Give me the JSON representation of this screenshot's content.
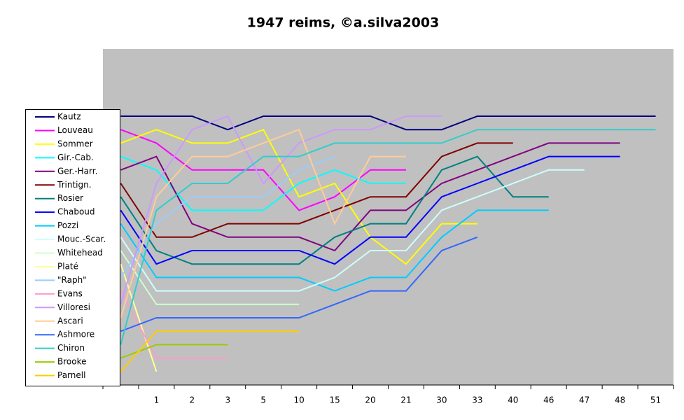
{
  "chart_data": {
    "type": "line",
    "title": "1947 reims,  ©a.silva2003",
    "categories": [
      null,
      "1",
      "2",
      "3",
      "5",
      "10",
      "15",
      "20",
      "21",
      "30",
      "33",
      "40",
      "46",
      "47",
      "48",
      "51"
    ],
    "ylim": [
      21,
      -4
    ],
    "series": [
      {
        "name": "Kautz",
        "color": "#000080",
        "values": [
          1,
          1,
          1,
          2,
          1,
          1,
          1,
          1,
          2,
          2,
          1,
          1,
          1,
          1,
          1,
          1
        ]
      },
      {
        "name": "Louveau",
        "color": "#ff00ff",
        "values": [
          2,
          3,
          5,
          5,
          5,
          8,
          7,
          5,
          5,
          null,
          null,
          null,
          null,
          null,
          null,
          null
        ]
      },
      {
        "name": "Sommer",
        "color": "#ffff00",
        "values": [
          3,
          2,
          3,
          3,
          2,
          7,
          6,
          10,
          12,
          9,
          9,
          null,
          null,
          null,
          null,
          null
        ]
      },
      {
        "name": "Gir.-Cab.",
        "color": "#00ffff",
        "values": [
          4,
          5,
          8,
          8,
          8,
          6,
          5,
          6,
          6,
          null,
          null,
          null,
          null,
          null,
          null,
          null
        ]
      },
      {
        "name": "Ger.-Harr.",
        "color": "#800080",
        "values": [
          5,
          4,
          9,
          10,
          10,
          10,
          11,
          8,
          8,
          6,
          5,
          4,
          3,
          3,
          3,
          null
        ]
      },
      {
        "name": "Trintign.",
        "color": "#800000",
        "values": [
          6,
          10,
          10,
          9,
          9,
          9,
          8,
          7,
          7,
          4,
          3,
          3,
          null,
          null,
          null,
          null
        ]
      },
      {
        "name": "Rosier",
        "color": "#008080",
        "values": [
          7,
          11,
          12,
          12,
          12,
          12,
          10,
          9,
          9,
          5,
          4,
          7,
          7,
          null,
          null,
          null
        ]
      },
      {
        "name": "Chaboud",
        "color": "#0000ff",
        "values": [
          8,
          12,
          11,
          11,
          11,
          11,
          12,
          10,
          10,
          7,
          6,
          5,
          4,
          4,
          4,
          null
        ]
      },
      {
        "name": "Pozzi",
        "color": "#00ccff",
        "values": [
          9,
          13,
          13,
          13,
          13,
          13,
          14,
          13,
          13,
          10,
          8,
          8,
          8,
          null,
          null,
          null
        ]
      },
      {
        "name": "Mouc.-Scar.",
        "color": "#ccffff",
        "values": [
          10,
          14,
          14,
          14,
          14,
          14,
          13,
          11,
          11,
          8,
          7,
          6,
          5,
          5,
          null,
          null
        ]
      },
      {
        "name": "Whitehead",
        "color": "#ccffcc",
        "values": [
          11,
          15,
          15,
          15,
          15,
          15,
          null,
          null,
          null,
          null,
          null,
          null,
          null,
          null,
          null,
          null
        ]
      },
      {
        "name": "Platé",
        "color": "#ffff99",
        "values": [
          12,
          20,
          null,
          null,
          null,
          null,
          null,
          null,
          null,
          null,
          null,
          null,
          null,
          null,
          null,
          null
        ]
      },
      {
        "name": "\"Raph\"",
        "color": "#99ccff",
        "values": [
          13,
          9,
          7,
          7,
          7,
          5,
          4,
          null,
          null,
          null,
          null,
          null,
          null,
          null,
          null,
          null
        ]
      },
      {
        "name": "Evans",
        "color": "#ff99cc",
        "values": [
          14,
          19,
          19,
          19,
          null,
          null,
          null,
          null,
          null,
          null,
          null,
          null,
          null,
          null,
          null,
          null
        ]
      },
      {
        "name": "Villoresi",
        "color": "#cc99ff",
        "values": [
          15,
          6,
          2,
          1,
          6,
          3,
          2,
          2,
          1,
          1,
          null,
          null,
          null,
          null,
          null,
          null
        ]
      },
      {
        "name": "Ascari",
        "color": "#ffcc99",
        "values": [
          16,
          7,
          4,
          4,
          3,
          2,
          9,
          4,
          4,
          null,
          null,
          null,
          null,
          null,
          null,
          null
        ]
      },
      {
        "name": "Ashmore",
        "color": "#3366ff",
        "values": [
          17,
          16,
          16,
          16,
          16,
          16,
          15,
          14,
          14,
          11,
          10,
          null,
          null,
          null,
          null,
          null
        ]
      },
      {
        "name": "Chiron",
        "color": "#33cccc",
        "values": [
          18,
          8,
          6,
          6,
          4,
          4,
          3,
          3,
          3,
          3,
          2,
          2,
          2,
          2,
          2,
          2
        ]
      },
      {
        "name": "Brooke",
        "color": "#99cc00",
        "values": [
          19,
          18,
          18,
          18,
          null,
          null,
          null,
          null,
          null,
          null,
          null,
          null,
          null,
          null,
          null,
          null
        ]
      },
      {
        "name": "Parnell",
        "color": "#ffcc00",
        "values": [
          20,
          17,
          17,
          17,
          17,
          17,
          null,
          null,
          null,
          null,
          null,
          null,
          null,
          null,
          null,
          null
        ]
      }
    ]
  }
}
